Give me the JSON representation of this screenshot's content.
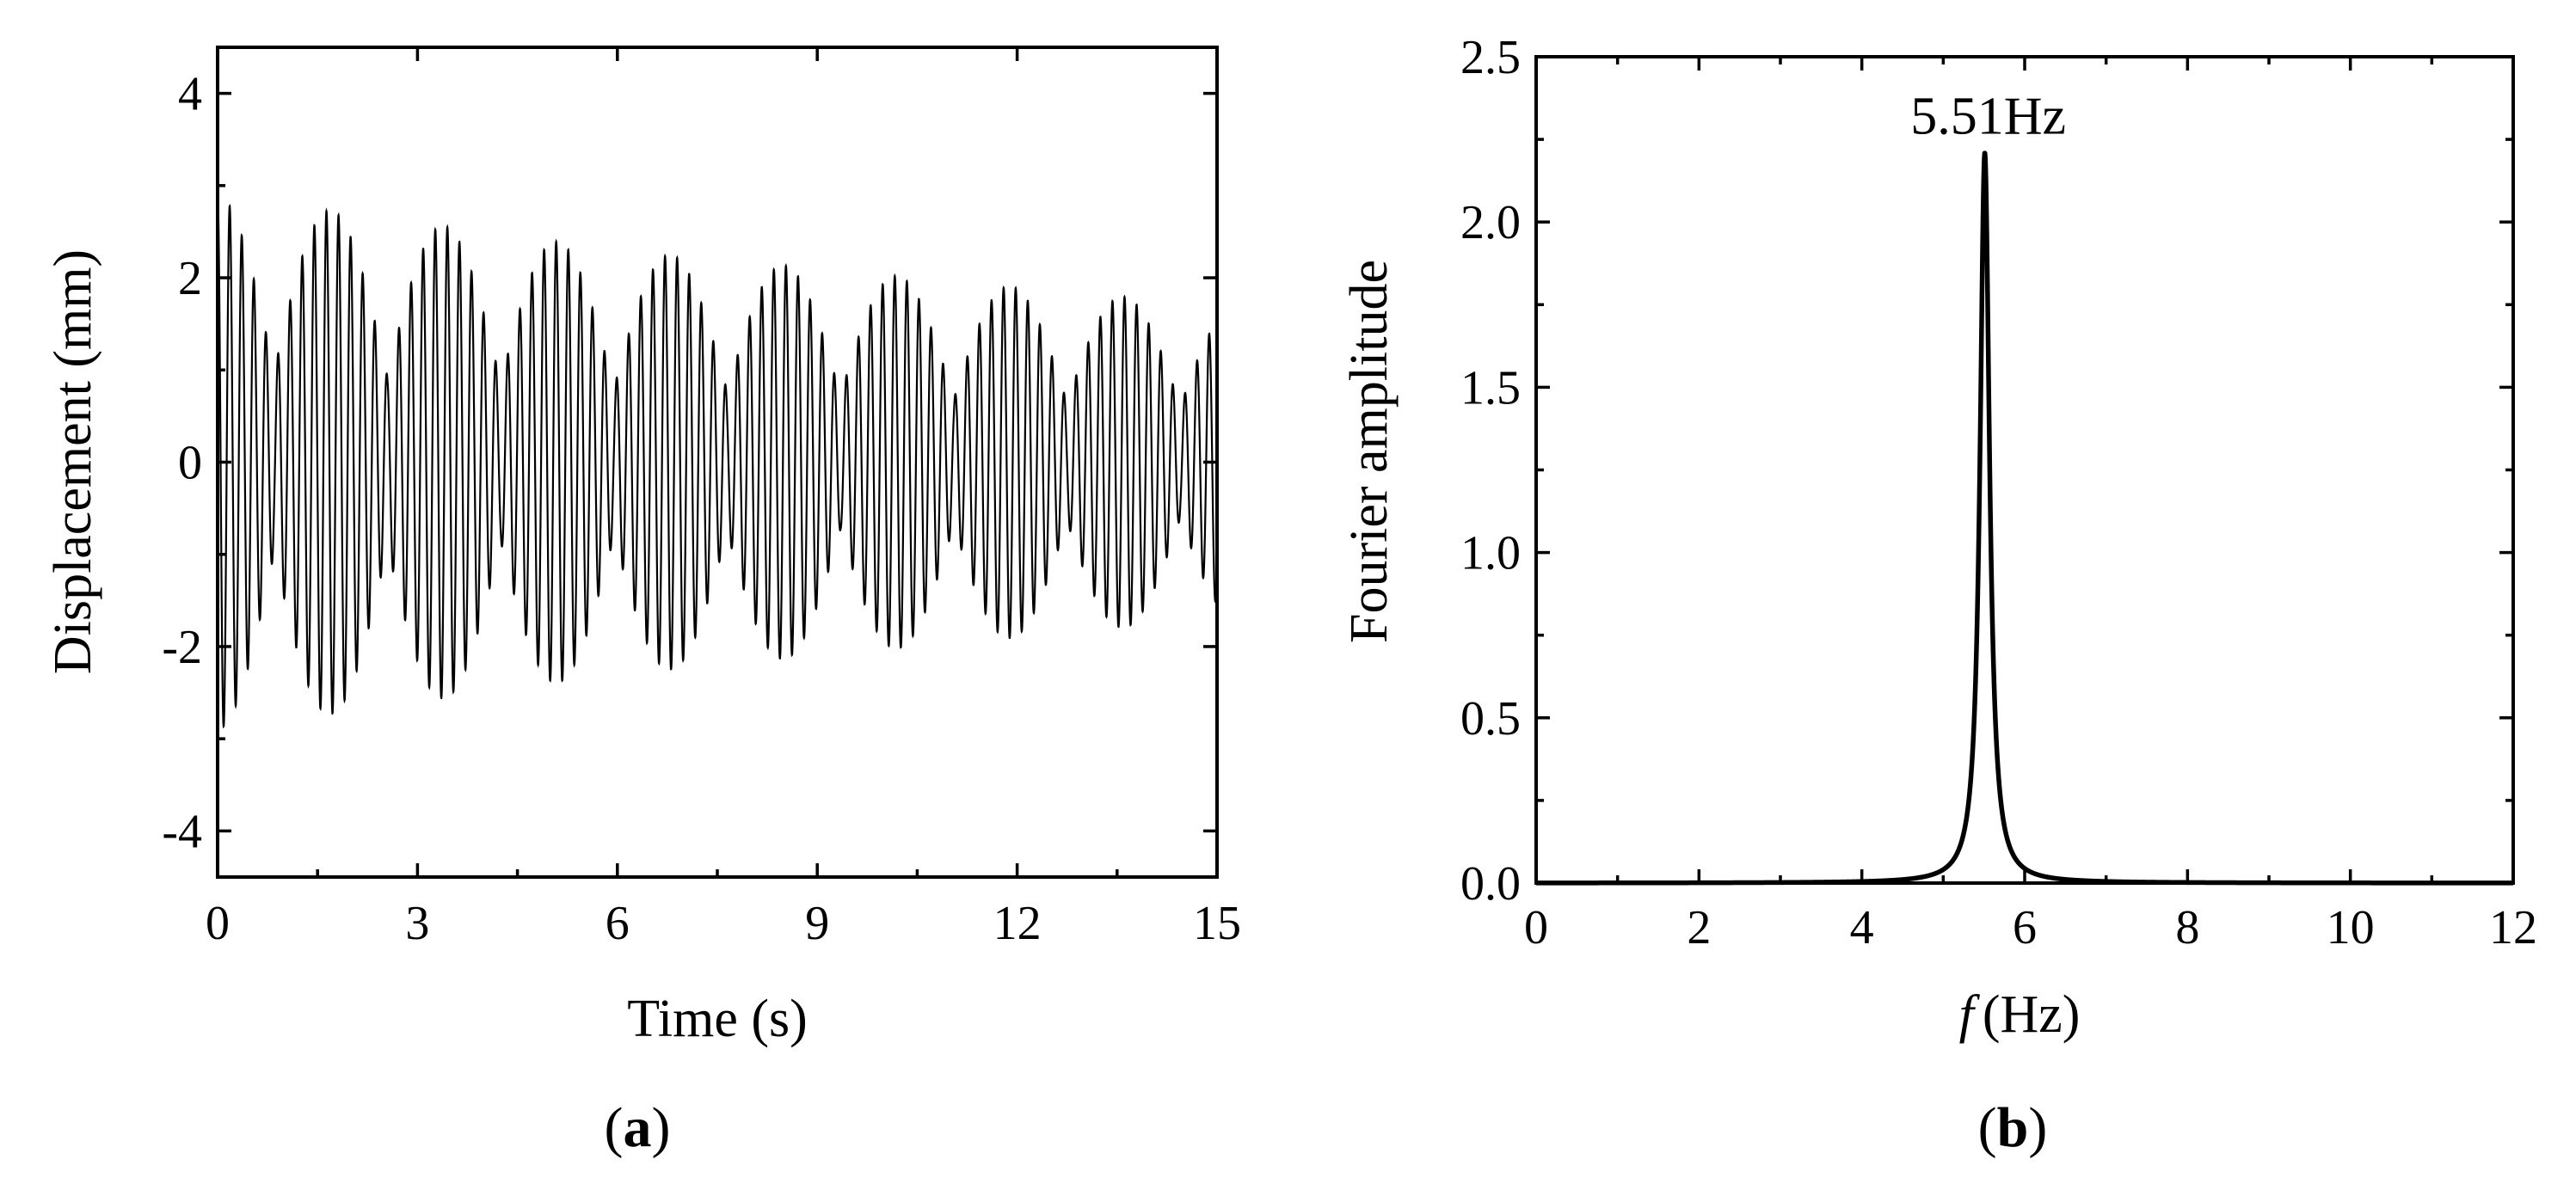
{
  "chart_data": [
    {
      "type": "line",
      "panel_label": "a",
      "xlabel": "Time (s)",
      "ylabel": "Displacement (mm)",
      "xlim": [
        0,
        15
      ],
      "ylim": [
        -4.5,
        4.5
      ],
      "xticks": [
        0,
        3,
        6,
        9,
        12,
        15
      ],
      "yticks": [
        -4,
        -2,
        0,
        2,
        4
      ],
      "grid": false,
      "line_color": "#000000",
      "signal": {
        "frequency_hz": 5.51,
        "beat_period_s": 1.7,
        "envelope": [
          {
            "x": 0,
            "y": 2.9
          },
          {
            "x": 3,
            "y": 2.6
          },
          {
            "x": 6,
            "y": 2.3
          },
          {
            "x": 9,
            "y": 2.1
          },
          {
            "x": 12,
            "y": 1.9
          },
          {
            "x": 15,
            "y": 1.7
          }
        ],
        "minimum_amplitude": 0.35
      }
    },
    {
      "type": "line",
      "panel_label": "b",
      "xlabel_symbol": "f",
      "xlabel_unit": "(Hz)",
      "ylabel": "Fourier amplitude",
      "xlim": [
        0,
        12
      ],
      "ylim": [
        0,
        2.5
      ],
      "xticks": [
        0,
        2,
        4,
        6,
        8,
        10,
        12
      ],
      "yticks": [
        "0.0",
        "0.5",
        "1.0",
        "1.5",
        "2.0",
        "2.5"
      ],
      "grid": false,
      "line_color": "#000000",
      "peak": {
        "x": 5.51,
        "y": 2.21,
        "label": "5.51Hz"
      },
      "half_width_hz": 0.07
    }
  ]
}
